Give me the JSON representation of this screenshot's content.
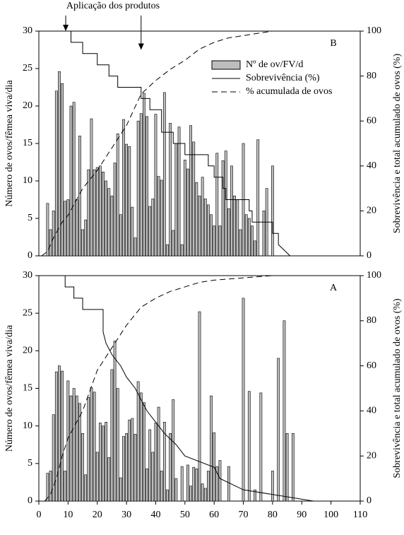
{
  "chart_data": [
    {
      "type": "bar-line",
      "panel": "B",
      "annotation": {
        "text": "Aplicação dos produtos",
        "arrows": [
          {
            "x": 9.2,
            "y": 30
          },
          {
            "x": 35,
            "y": 27.5
          }
        ]
      },
      "y_label": "Número de ovos/fêmea viva/dia",
      "y2_label": "Sobrevivência e total acumulado de ovos (%)",
      "xlim": [
        0,
        110
      ],
      "xticks": [],
      "ylim": [
        0,
        30
      ],
      "yticks": [
        0,
        5,
        10,
        15,
        20,
        25,
        30
      ],
      "y2lim": [
        0,
        100
      ],
      "y2ticks": [
        0,
        20,
        40,
        60,
        80,
        100
      ],
      "series": [
        {
          "name": "Nº de ov/FV/d",
          "style": "bar",
          "color": "#bdbdbd",
          "x": [
            3,
            4,
            5,
            6,
            7,
            8,
            9,
            10,
            11,
            12,
            13,
            14,
            15,
            16,
            17,
            18,
            19,
            20,
            21,
            22,
            23,
            24,
            25,
            26,
            27,
            28,
            29,
            30,
            31,
            32,
            33,
            34,
            35,
            36,
            37,
            38,
            39,
            40,
            41,
            42,
            43,
            44,
            45,
            46,
            47,
            48,
            49,
            50,
            51,
            52,
            53,
            54,
            55,
            56,
            57,
            58,
            59,
            60,
            61,
            62,
            63,
            64,
            65,
            66,
            67,
            68,
            69,
            70,
            71,
            72,
            73,
            74,
            75,
            77,
            78,
            80
          ],
          "values": [
            7,
            3.5,
            6,
            22,
            24.6,
            23,
            7.3,
            7.5,
            20,
            20.5,
            7.5,
            16,
            3.5,
            4.8,
            11.5,
            18.3,
            11.5,
            11.8,
            12,
            11.2,
            10,
            9,
            8,
            12.4,
            16.3,
            5.5,
            18.2,
            14.9,
            14.6,
            6.5,
            2.4,
            18,
            19,
            21.7,
            18.6,
            6.6,
            7.6,
            18.9,
            10.6,
            10.1,
            21.8,
            1.5,
            17.7,
            3.4,
            15,
            17.2,
            1.5,
            12.8,
            11.6,
            17.4,
            15.2,
            9.8,
            8,
            10.5,
            7.6,
            6.8,
            5.5,
            4,
            13.7,
            4,
            12.7,
            14,
            6.3,
            12,
            8,
            7.5,
            3.5,
            15,
            5.5,
            5,
            4,
            2,
            15.5,
            6,
            9,
            12
          ]
        },
        {
          "name": "Sobrevivência (%)",
          "style": "solid",
          "color": "#000",
          "axis": "y2",
          "x": [
            0,
            11,
            11,
            15,
            15,
            20,
            20,
            24,
            24,
            27,
            27,
            35,
            35,
            38,
            38,
            42,
            42,
            46,
            46,
            50,
            50,
            58,
            58,
            60,
            60,
            63,
            63,
            64,
            64,
            72,
            72,
            73,
            73,
            80,
            80,
            82,
            82,
            86
          ],
          "values": [
            100,
            100,
            95,
            95,
            90,
            90,
            85,
            85,
            80,
            80,
            75,
            75,
            70,
            70,
            65,
            65,
            55,
            55,
            50,
            50,
            45,
            45,
            40,
            40,
            35,
            35,
            30,
            30,
            25,
            25,
            20,
            20,
            15,
            15,
            10,
            10,
            5,
            0
          ]
        },
        {
          "name": "% acumulada de ovos",
          "style": "dashed",
          "color": "#000",
          "axis": "y2",
          "x": [
            1,
            3,
            5,
            8,
            10,
            15,
            20,
            25,
            30,
            35,
            40,
            45,
            50,
            55,
            60,
            65,
            70,
            75,
            80,
            86
          ],
          "values": [
            0,
            2,
            8,
            15,
            18,
            30,
            38,
            48,
            58,
            72,
            78,
            83,
            87,
            92,
            95,
            97,
            98,
            99,
            100,
            100
          ]
        }
      ]
    },
    {
      "type": "bar-line",
      "panel": "A",
      "y_label": "Número de ovos/fêmea viva/dia",
      "y2_label": "Sobrevivência e total acumulado de ovos (%)",
      "xlim": [
        0,
        110
      ],
      "xticks": [
        0,
        10,
        20,
        30,
        40,
        50,
        60,
        70,
        80,
        90,
        100,
        110
      ],
      "ylim": [
        0,
        30
      ],
      "yticks": [
        0,
        5,
        10,
        15,
        20,
        25,
        30
      ],
      "y2lim": [
        0,
        100
      ],
      "y2ticks": [
        0,
        20,
        40,
        60,
        80,
        100
      ],
      "series": [
        {
          "style": "bar",
          "color": "#bdbdbd",
          "x": [
            3,
            4,
            5,
            6,
            7,
            8,
            9,
            10,
            11,
            12,
            13,
            14,
            15,
            16,
            17,
            18,
            19,
            20,
            21,
            22,
            23,
            24,
            25,
            26,
            27,
            28,
            29,
            30,
            31,
            32,
            33,
            34,
            35,
            36,
            37,
            38,
            39,
            40,
            41,
            42,
            43,
            44,
            45,
            46,
            47,
            49,
            51,
            52,
            53,
            54,
            55,
            56,
            57,
            58,
            59,
            60,
            61,
            62,
            65,
            70,
            72,
            74,
            76,
            80,
            82,
            84,
            85,
            87
          ],
          "values": [
            3.7,
            4,
            11.5,
            17.2,
            18,
            17.3,
            4,
            16,
            14,
            15,
            14,
            13,
            9,
            3.5,
            13.8,
            15.1,
            14.5,
            6.5,
            10.4,
            10,
            10.5,
            5.8,
            17.5,
            21.3,
            15,
            3.1,
            8.6,
            9,
            10.8,
            11,
            8.9,
            15.9,
            14.4,
            13.1,
            4.3,
            9.5,
            6.5,
            10.4,
            12.5,
            4,
            10.5,
            1.5,
            9,
            13.5,
            3,
            4.6,
            4.8,
            2,
            4.5,
            4.3,
            25.2,
            2.3,
            1.7,
            4,
            14,
            9.1,
            4.6,
            5.4,
            4.6,
            27,
            14.6,
            1.5,
            14.4,
            4,
            19,
            24,
            9,
            9
          ]
        },
        {
          "style": "solid",
          "color": "#000",
          "axis": "y2",
          "x": [
            0,
            9,
            9,
            12,
            12,
            15,
            15,
            22,
            22,
            23,
            23,
            25,
            25,
            28,
            28,
            30,
            30,
            33,
            33,
            35,
            35,
            37,
            37,
            40,
            40,
            43,
            43,
            47,
            47,
            50,
            50,
            60,
            60,
            62,
            62,
            70,
            70,
            94
          ],
          "values": [
            100,
            100,
            95,
            95,
            90,
            90,
            85,
            85,
            75,
            70,
            70,
            65,
            65,
            60,
            60,
            55,
            55,
            50,
            50,
            45,
            45,
            40,
            40,
            35,
            35,
            30,
            30,
            25,
            25,
            20,
            20,
            15,
            15,
            10,
            10,
            5,
            5,
            0
          ]
        },
        {
          "style": "dashed",
          "color": "#000",
          "axis": "y2",
          "x": [
            2,
            4,
            6,
            8,
            10,
            15,
            20,
            25,
            30,
            35,
            40,
            45,
            50,
            55,
            60,
            70,
            80,
            94
          ],
          "values": [
            0,
            3,
            10,
            20,
            28,
            40,
            58,
            68,
            78,
            86,
            90,
            93,
            95,
            97,
            98,
            99,
            100,
            100
          ]
        }
      ]
    }
  ]
}
